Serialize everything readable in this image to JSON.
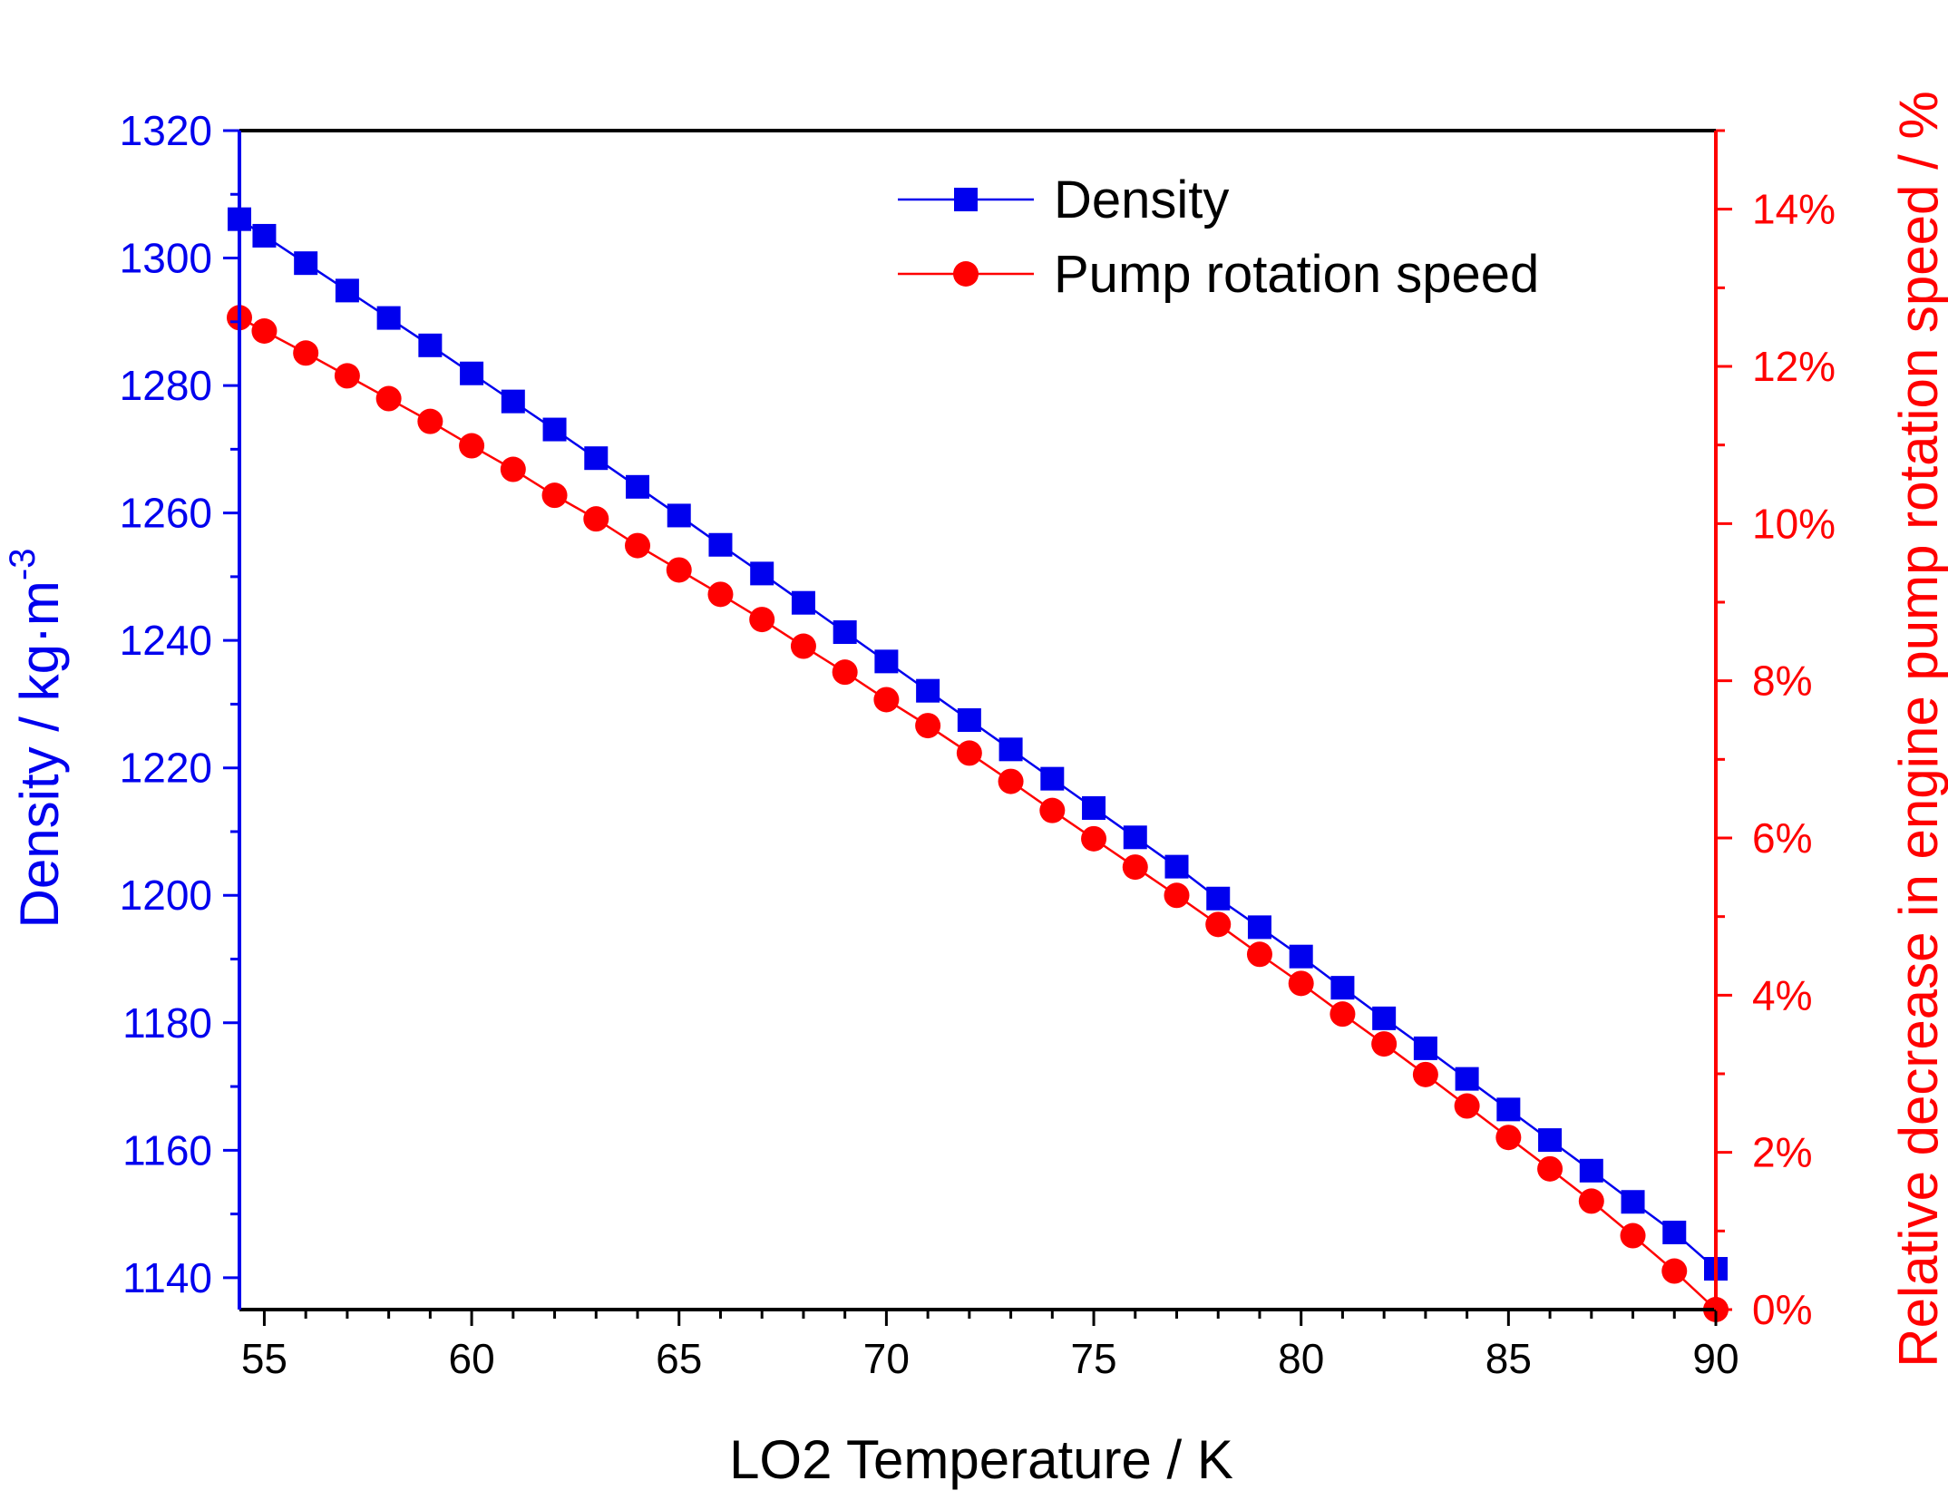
{
  "colors": {
    "left": "#0000ee",
    "right": "#ff0000",
    "frame": "#000000",
    "background": "#ffffff"
  },
  "icons": {
    "density_marker": "square",
    "pump_marker": "circle"
  },
  "chart_data": {
    "type": "line",
    "title": "",
    "xlabel": "LO2 Temperature / K",
    "ylabel_left": {
      "main": "Density / kg·m",
      "superscript": "-3"
    },
    "ylabel_right": "Relative decrease in engine pump rotation speed / %",
    "xlim": [
      54.4,
      90
    ],
    "ylim_left": [
      1135,
      1320
    ],
    "ylim_right": [
      0,
      0.15
    ],
    "x_ticks": [
      {
        "value": 55,
        "label": "55"
      },
      {
        "value": 60,
        "label": "60"
      },
      {
        "value": 65,
        "label": "65"
      },
      {
        "value": 70,
        "label": "70"
      },
      {
        "value": 75,
        "label": "75"
      },
      {
        "value": 80,
        "label": "80"
      },
      {
        "value": 85,
        "label": "85"
      },
      {
        "value": 90,
        "label": "90"
      }
    ],
    "y_left_ticks": [
      {
        "value": 1140,
        "label": "1140"
      },
      {
        "value": 1160,
        "label": "1160"
      },
      {
        "value": 1180,
        "label": "1180"
      },
      {
        "value": 1200,
        "label": "1200"
      },
      {
        "value": 1220,
        "label": "1220"
      },
      {
        "value": 1240,
        "label": "1240"
      },
      {
        "value": 1260,
        "label": "1260"
      },
      {
        "value": 1280,
        "label": "1280"
      },
      {
        "value": 1300,
        "label": "1300"
      },
      {
        "value": 1320,
        "label": "1320"
      }
    ],
    "y_right_ticks": [
      {
        "value": 0,
        "label": "0%"
      },
      {
        "value": 0.02,
        "label": "2%"
      },
      {
        "value": 0.04,
        "label": "4%"
      },
      {
        "value": 0.06,
        "label": "6%"
      },
      {
        "value": 0.08,
        "label": "8%"
      },
      {
        "value": 0.1,
        "label": "10%"
      },
      {
        "value": 0.12,
        "label": "12%"
      },
      {
        "value": 0.14,
        "label": "14%"
      }
    ],
    "legend": {
      "position": "top-right",
      "entries": [
        {
          "name": "Density",
          "axis": "left",
          "marker": "square"
        },
        {
          "name": "Pump rotation speed",
          "axis": "right",
          "marker": "circle"
        }
      ]
    },
    "x": [
      54.4,
      55,
      56,
      57,
      58,
      59,
      60,
      61,
      62,
      63,
      64,
      65,
      66,
      67,
      68,
      69,
      70,
      71,
      72,
      73,
      74,
      75,
      76,
      77,
      78,
      79,
      80,
      81,
      82,
      83,
      84,
      85,
      86,
      87,
      88,
      89,
      90
    ],
    "series": [
      {
        "name": "Density",
        "axis": "left",
        "marker": "square",
        "values": [
          1306.1,
          1303.5,
          1299.2,
          1294.9,
          1290.6,
          1286.3,
          1281.9,
          1277.5,
          1273.1,
          1268.6,
          1264.1,
          1259.6,
          1255.0,
          1250.5,
          1245.9,
          1241.3,
          1236.7,
          1232.1,
          1227.5,
          1222.9,
          1218.3,
          1213.7,
          1209.1,
          1204.5,
          1199.5,
          1195.0,
          1190.4,
          1185.5,
          1180.7,
          1176.0,
          1171.2,
          1166.4,
          1161.6,
          1156.8,
          1151.9,
          1147.1,
          1141.4
        ]
      },
      {
        "name": "Pump rotation speed",
        "axis": "right",
        "marker": "circle",
        "values": [
          0.1262,
          0.1245,
          0.1217,
          0.1188,
          0.1159,
          0.113,
          0.1099,
          0.1069,
          0.1036,
          0.1006,
          0.0972,
          0.0941,
          0.091,
          0.0878,
          0.0844,
          0.0811,
          0.0776,
          0.0743,
          0.0708,
          0.0672,
          0.0635,
          0.0599,
          0.0563,
          0.0527,
          0.049,
          0.0452,
          0.0415,
          0.0376,
          0.0338,
          0.0299,
          0.0259,
          0.0219,
          0.0179,
          0.0138,
          0.0094,
          0.0049,
          0.0
        ]
      }
    ]
  }
}
